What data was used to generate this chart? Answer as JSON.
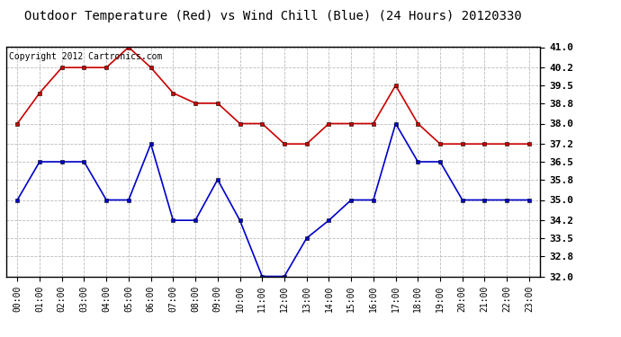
{
  "title": "Outdoor Temperature (Red) vs Wind Chill (Blue) (24 Hours) 20120330",
  "copyright_text": "Copyright 2012 Cartronics.com",
  "hours": [
    0,
    1,
    2,
    3,
    4,
    5,
    6,
    7,
    8,
    9,
    10,
    11,
    12,
    13,
    14,
    15,
    16,
    17,
    18,
    19,
    20,
    21,
    22,
    23
  ],
  "tick_labels": [
    "00:00",
    "01:00",
    "02:00",
    "03:00",
    "04:00",
    "05:00",
    "06:00",
    "07:00",
    "08:00",
    "09:00",
    "10:00",
    "11:00",
    "12:00",
    "13:00",
    "14:00",
    "15:00",
    "16:00",
    "17:00",
    "18:00",
    "19:00",
    "20:00",
    "21:00",
    "22:00",
    "23:00"
  ],
  "red_temp": [
    38.0,
    39.2,
    40.2,
    40.2,
    40.2,
    41.0,
    40.2,
    39.2,
    38.8,
    38.8,
    38.0,
    38.0,
    37.2,
    37.2,
    38.0,
    38.0,
    38.0,
    39.5,
    38.0,
    37.2,
    37.2,
    37.2,
    37.2,
    37.2
  ],
  "blue_wind": [
    35.0,
    36.5,
    36.5,
    36.5,
    35.0,
    35.0,
    37.2,
    34.2,
    34.2,
    35.8,
    34.2,
    32.0,
    32.0,
    33.5,
    34.2,
    35.0,
    35.0,
    38.0,
    36.5,
    36.5,
    35.0,
    35.0,
    35.0,
    35.0
  ],
  "ylim": [
    32.0,
    41.0
  ],
  "yticks": [
    32.0,
    32.8,
    33.5,
    34.2,
    35.0,
    35.8,
    36.5,
    37.2,
    38.0,
    38.8,
    39.5,
    40.2,
    41.0
  ],
  "red_color": "#cc0000",
  "blue_color": "#0000cc",
  "bg_color": "#ffffff",
  "grid_color": "#bbbbbb",
  "title_fontsize": 10,
  "copyright_fontsize": 7,
  "marker_size": 3.5,
  "tick_fontsize": 7,
  "ytick_fontsize": 8
}
